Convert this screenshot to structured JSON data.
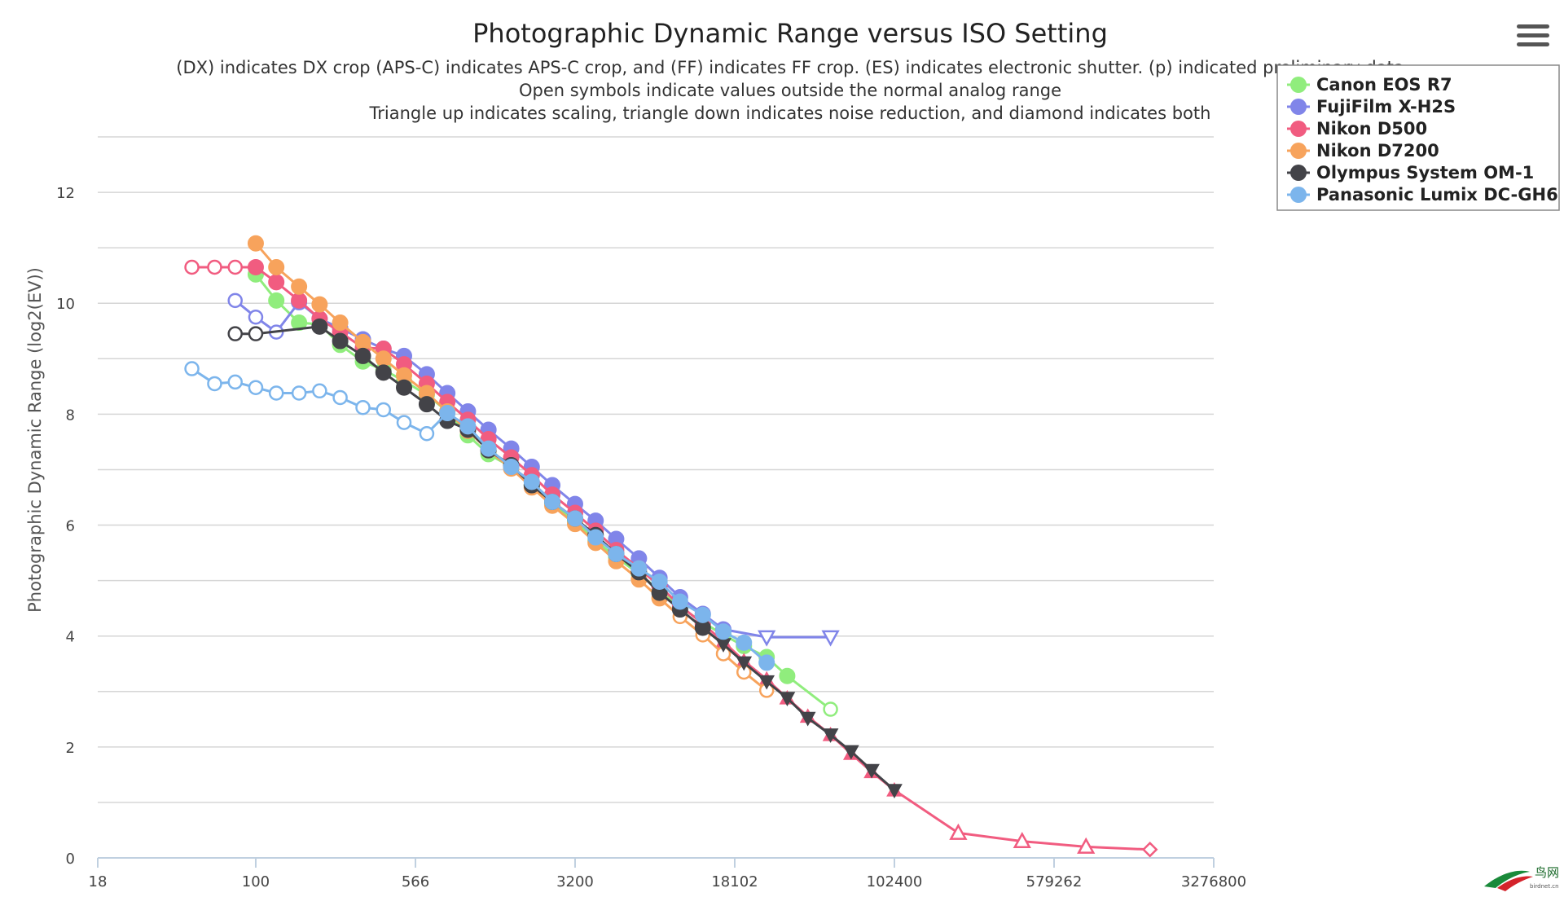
{
  "chart_data": {
    "type": "line",
    "title": "Photographic Dynamic Range versus ISO Setting",
    "subtitles": [
      "(DX) indicates DX crop (APS-C) indicates APS-C crop, and (FF) indicates FF crop. (ES) indicates electronic shutter. (p) indicated preliminary data",
      "Open symbols indicate values outside the normal analog range",
      "Triangle up indicates scaling, triangle down indicates noise reduction, and diamond indicates both"
    ],
    "ylabel": "Photographic Dynamic Range (log2(EV))",
    "xlabel": "",
    "x_scale": "log",
    "x_ticks": [
      "18",
      "100",
      "566",
      "3200",
      "18102",
      "102400",
      "579262",
      "3276800"
    ],
    "y_ticks": [
      "0",
      "2",
      "4",
      "6",
      "8",
      "10",
      "12"
    ],
    "ylim": [
      0,
      13
    ],
    "grid": true,
    "legend_position": "top-right",
    "series": [
      {
        "name": "Canon EOS R7",
        "color": "#90ed7d",
        "points": [
          {
            "x": 100,
            "y": 10.52,
            "m": "c"
          },
          {
            "x": 125,
            "y": 10.05,
            "m": "c"
          },
          {
            "x": 160,
            "y": 9.65,
            "m": "c"
          },
          {
            "x": 200,
            "y": 9.62,
            "m": "c"
          },
          {
            "x": 250,
            "y": 9.25,
            "m": "c"
          },
          {
            "x": 320,
            "y": 8.95,
            "m": "c"
          },
          {
            "x": 400,
            "y": 8.8,
            "m": "c"
          },
          {
            "x": 500,
            "y": 8.6,
            "m": "c"
          },
          {
            "x": 640,
            "y": 8.35,
            "m": "c"
          },
          {
            "x": 800,
            "y": 8.05,
            "m": "c"
          },
          {
            "x": 1000,
            "y": 7.62,
            "m": "c"
          },
          {
            "x": 1250,
            "y": 7.28,
            "m": "c"
          },
          {
            "x": 1600,
            "y": 7.05,
            "m": "c"
          },
          {
            "x": 2000,
            "y": 6.72,
            "m": "c"
          },
          {
            "x": 2500,
            "y": 6.4,
            "m": "c"
          },
          {
            "x": 3200,
            "y": 6.07,
            "m": "c"
          },
          {
            "x": 4000,
            "y": 5.72,
            "m": "c"
          },
          {
            "x": 5000,
            "y": 5.42,
            "m": "c"
          },
          {
            "x": 6400,
            "y": 5.12,
            "m": "c"
          },
          {
            "x": 8000,
            "y": 4.82,
            "m": "c"
          },
          {
            "x": 10000,
            "y": 4.52,
            "m": "c"
          },
          {
            "x": 12800,
            "y": 4.25,
            "m": "c"
          },
          {
            "x": 16000,
            "y": 4.02,
            "m": "c"
          },
          {
            "x": 20000,
            "y": 3.82,
            "m": "c"
          },
          {
            "x": 25600,
            "y": 3.62,
            "m": "c"
          },
          {
            "x": 32000,
            "y": 3.28,
            "m": "c"
          },
          {
            "x": 51200,
            "y": 2.68,
            "m": "co"
          }
        ]
      },
      {
        "name": "FujiFilm X-H2S",
        "color": "#8085e9",
        "points": [
          {
            "x": 80,
            "y": 10.05,
            "m": "co"
          },
          {
            "x": 100,
            "y": 9.75,
            "m": "co"
          },
          {
            "x": 125,
            "y": 9.48,
            "m": "co"
          },
          {
            "x": 160,
            "y": 10.02,
            "m": "c"
          },
          {
            "x": 200,
            "y": 9.72,
            "m": "c"
          },
          {
            "x": 250,
            "y": 9.55,
            "m": "c"
          },
          {
            "x": 320,
            "y": 9.35,
            "m": "c"
          },
          {
            "x": 400,
            "y": 9.18,
            "m": "c"
          },
          {
            "x": 500,
            "y": 9.05,
            "m": "c"
          },
          {
            "x": 640,
            "y": 8.72,
            "m": "c"
          },
          {
            "x": 800,
            "y": 8.38,
            "m": "c"
          },
          {
            "x": 1000,
            "y": 8.05,
            "m": "c"
          },
          {
            "x": 1250,
            "y": 7.72,
            "m": "c"
          },
          {
            "x": 1600,
            "y": 7.38,
            "m": "c"
          },
          {
            "x": 2000,
            "y": 7.05,
            "m": "c"
          },
          {
            "x": 2500,
            "y": 6.72,
            "m": "c"
          },
          {
            "x": 3200,
            "y": 6.38,
            "m": "c"
          },
          {
            "x": 4000,
            "y": 6.08,
            "m": "c"
          },
          {
            "x": 5000,
            "y": 5.75,
            "m": "c"
          },
          {
            "x": 6400,
            "y": 5.4,
            "m": "c"
          },
          {
            "x": 8000,
            "y": 5.05,
            "m": "c"
          },
          {
            "x": 10000,
            "y": 4.7,
            "m": "c"
          },
          {
            "x": 12800,
            "y": 4.4,
            "m": "c"
          },
          {
            "x": 16000,
            "y": 4.12,
            "m": "c"
          },
          {
            "x": 25600,
            "y": 3.98,
            "m": "tdo"
          },
          {
            "x": 51200,
            "y": 3.98,
            "m": "tdo"
          }
        ]
      },
      {
        "name": "Nikon D500",
        "color": "#f15c80",
        "points": [
          {
            "x": 50,
            "y": 10.65,
            "m": "co"
          },
          {
            "x": 64,
            "y": 10.65,
            "m": "co"
          },
          {
            "x": 80,
            "y": 10.65,
            "m": "co"
          },
          {
            "x": 100,
            "y": 10.65,
            "m": "c"
          },
          {
            "x": 125,
            "y": 10.38,
            "m": "c"
          },
          {
            "x": 160,
            "y": 10.05,
            "m": "c"
          },
          {
            "x": 200,
            "y": 9.72,
            "m": "c"
          },
          {
            "x": 250,
            "y": 9.48,
            "m": "c"
          },
          {
            "x": 320,
            "y": 9.2,
            "m": "c"
          },
          {
            "x": 400,
            "y": 9.18,
            "m": "c"
          },
          {
            "x": 500,
            "y": 8.9,
            "m": "c"
          },
          {
            "x": 640,
            "y": 8.55,
            "m": "c"
          },
          {
            "x": 800,
            "y": 8.22,
            "m": "c"
          },
          {
            "x": 1000,
            "y": 7.9,
            "m": "c"
          },
          {
            "x": 1250,
            "y": 7.55,
            "m": "c"
          },
          {
            "x": 1600,
            "y": 7.22,
            "m": "c"
          },
          {
            "x": 2000,
            "y": 6.9,
            "m": "c"
          },
          {
            "x": 2500,
            "y": 6.55,
            "m": "c"
          },
          {
            "x": 3200,
            "y": 6.22,
            "m": "c"
          },
          {
            "x": 4000,
            "y": 5.9,
            "m": "c"
          },
          {
            "x": 5000,
            "y": 5.55,
            "m": "c"
          },
          {
            "x": 6400,
            "y": 5.22,
            "m": "c"
          },
          {
            "x": 8000,
            "y": 4.9,
            "m": "c"
          },
          {
            "x": 10000,
            "y": 4.55,
            "m": "c"
          },
          {
            "x": 12800,
            "y": 4.22,
            "m": "c"
          },
          {
            "x": 16000,
            "y": 3.9,
            "m": "tu"
          },
          {
            "x": 20000,
            "y": 3.55,
            "m": "tu"
          },
          {
            "x": 25600,
            "y": 3.22,
            "m": "tu"
          },
          {
            "x": 32000,
            "y": 2.88,
            "m": "tu"
          },
          {
            "x": 40000,
            "y": 2.55,
            "m": "tu"
          },
          {
            "x": 51200,
            "y": 2.22,
            "m": "tu"
          },
          {
            "x": 64000,
            "y": 1.88,
            "m": "tu"
          },
          {
            "x": 80000,
            "y": 1.55,
            "m": "tu"
          },
          {
            "x": 102400,
            "y": 1.22,
            "m": "tu"
          },
          {
            "x": 204800,
            "y": 0.45,
            "m": "tuo"
          },
          {
            "x": 409600,
            "y": 0.3,
            "m": "tuo"
          },
          {
            "x": 819200,
            "y": 0.2,
            "m": "tuo"
          },
          {
            "x": 1640000,
            "y": 0.15,
            "m": "do"
          }
        ]
      },
      {
        "name": "Nikon D7200",
        "color": "#f7a35c",
        "points": [
          {
            "x": 100,
            "y": 11.08,
            "m": "c"
          },
          {
            "x": 125,
            "y": 10.65,
            "m": "c"
          },
          {
            "x": 160,
            "y": 10.3,
            "m": "c"
          },
          {
            "x": 200,
            "y": 9.98,
            "m": "c"
          },
          {
            "x": 250,
            "y": 9.65,
            "m": "c"
          },
          {
            "x": 320,
            "y": 9.3,
            "m": "c"
          },
          {
            "x": 400,
            "y": 9.0,
            "m": "c"
          },
          {
            "x": 500,
            "y": 8.7,
            "m": "c"
          },
          {
            "x": 640,
            "y": 8.38,
            "m": "c"
          },
          {
            "x": 800,
            "y": 8.05,
            "m": "c"
          },
          {
            "x": 1000,
            "y": 7.7,
            "m": "c"
          },
          {
            "x": 1250,
            "y": 7.35,
            "m": "c"
          },
          {
            "x": 1600,
            "y": 7.02,
            "m": "c"
          },
          {
            "x": 2000,
            "y": 6.68,
            "m": "c"
          },
          {
            "x": 2500,
            "y": 6.35,
            "m": "c"
          },
          {
            "x": 3200,
            "y": 6.02,
            "m": "c"
          },
          {
            "x": 4000,
            "y": 5.68,
            "m": "c"
          },
          {
            "x": 5000,
            "y": 5.35,
            "m": "c"
          },
          {
            "x": 6400,
            "y": 5.02,
            "m": "c"
          },
          {
            "x": 8000,
            "y": 4.68,
            "m": "c"
          },
          {
            "x": 10000,
            "y": 4.35,
            "m": "co"
          },
          {
            "x": 12800,
            "y": 4.02,
            "m": "co"
          },
          {
            "x": 16000,
            "y": 3.68,
            "m": "co"
          },
          {
            "x": 20000,
            "y": 3.35,
            "m": "co"
          },
          {
            "x": 25600,
            "y": 3.02,
            "m": "co"
          }
        ]
      },
      {
        "name": "Olympus System OM-1",
        "color": "#434348",
        "points": [
          {
            "x": 80,
            "y": 9.45,
            "m": "co"
          },
          {
            "x": 100,
            "y": 9.45,
            "m": "co"
          },
          {
            "x": 200,
            "y": 9.58,
            "m": "c"
          },
          {
            "x": 250,
            "y": 9.32,
            "m": "c"
          },
          {
            "x": 320,
            "y": 9.05,
            "m": "c"
          },
          {
            "x": 400,
            "y": 8.75,
            "m": "c"
          },
          {
            "x": 500,
            "y": 8.48,
            "m": "c"
          },
          {
            "x": 640,
            "y": 8.18,
            "m": "c"
          },
          {
            "x": 800,
            "y": 7.88,
            "m": "c"
          },
          {
            "x": 1000,
            "y": 7.72,
            "m": "c"
          },
          {
            "x": 1250,
            "y": 7.35,
            "m": "c"
          },
          {
            "x": 1600,
            "y": 7.08,
            "m": "c"
          },
          {
            "x": 2000,
            "y": 6.72,
            "m": "c"
          },
          {
            "x": 2500,
            "y": 6.42,
            "m": "c"
          },
          {
            "x": 3200,
            "y": 6.12,
            "m": "c"
          },
          {
            "x": 4000,
            "y": 5.82,
            "m": "c"
          },
          {
            "x": 5000,
            "y": 5.48,
            "m": "c"
          },
          {
            "x": 6400,
            "y": 5.15,
            "m": "c"
          },
          {
            "x": 8000,
            "y": 4.78,
            "m": "c"
          },
          {
            "x": 10000,
            "y": 4.48,
            "m": "c"
          },
          {
            "x": 12800,
            "y": 4.15,
            "m": "c"
          },
          {
            "x": 16000,
            "y": 3.85,
            "m": "td"
          },
          {
            "x": 20000,
            "y": 3.52,
            "m": "td"
          },
          {
            "x": 25600,
            "y": 3.18,
            "m": "td"
          },
          {
            "x": 32000,
            "y": 2.88,
            "m": "td"
          },
          {
            "x": 40000,
            "y": 2.52,
            "m": "td"
          },
          {
            "x": 51200,
            "y": 2.22,
            "m": "td"
          },
          {
            "x": 64000,
            "y": 1.92,
            "m": "td"
          },
          {
            "x": 80000,
            "y": 1.58,
            "m": "td"
          },
          {
            "x": 102400,
            "y": 1.22,
            "m": "td"
          }
        ]
      },
      {
        "name": "Panasonic Lumix DC-GH6",
        "color": "#7cb5ec",
        "points": [
          {
            "x": 50,
            "y": 8.82,
            "m": "co"
          },
          {
            "x": 64,
            "y": 8.55,
            "m": "co"
          },
          {
            "x": 80,
            "y": 8.58,
            "m": "co"
          },
          {
            "x": 100,
            "y": 8.48,
            "m": "co"
          },
          {
            "x": 125,
            "y": 8.38,
            "m": "co"
          },
          {
            "x": 160,
            "y": 8.38,
            "m": "co"
          },
          {
            "x": 200,
            "y": 8.42,
            "m": "co"
          },
          {
            "x": 250,
            "y": 8.3,
            "m": "co"
          },
          {
            "x": 320,
            "y": 8.12,
            "m": "co"
          },
          {
            "x": 400,
            "y": 8.08,
            "m": "co"
          },
          {
            "x": 500,
            "y": 7.85,
            "m": "co"
          },
          {
            "x": 640,
            "y": 7.65,
            "m": "co"
          },
          {
            "x": 800,
            "y": 8.02,
            "m": "c"
          },
          {
            "x": 1000,
            "y": 7.78,
            "m": "c"
          },
          {
            "x": 1250,
            "y": 7.38,
            "m": "c"
          },
          {
            "x": 1600,
            "y": 7.05,
            "m": "c"
          },
          {
            "x": 2000,
            "y": 6.78,
            "m": "c"
          },
          {
            "x": 2500,
            "y": 6.42,
            "m": "c"
          },
          {
            "x": 3200,
            "y": 6.12,
            "m": "c"
          },
          {
            "x": 4000,
            "y": 5.78,
            "m": "c"
          },
          {
            "x": 5000,
            "y": 5.48,
            "m": "c"
          },
          {
            "x": 6400,
            "y": 5.22,
            "m": "c"
          },
          {
            "x": 8000,
            "y": 4.98,
            "m": "c"
          },
          {
            "x": 10000,
            "y": 4.62,
            "m": "c"
          },
          {
            "x": 12800,
            "y": 4.38,
            "m": "c"
          },
          {
            "x": 16000,
            "y": 4.08,
            "m": "c"
          },
          {
            "x": 20000,
            "y": 3.88,
            "m": "c"
          },
          {
            "x": 25600,
            "y": 3.52,
            "m": "c"
          }
        ]
      }
    ]
  },
  "menu": {
    "icon": "hamburger-menu-icon"
  },
  "watermark": {
    "text": "鸟网",
    "subtext": "birdnet.cn",
    "icon": "bird-logo"
  }
}
